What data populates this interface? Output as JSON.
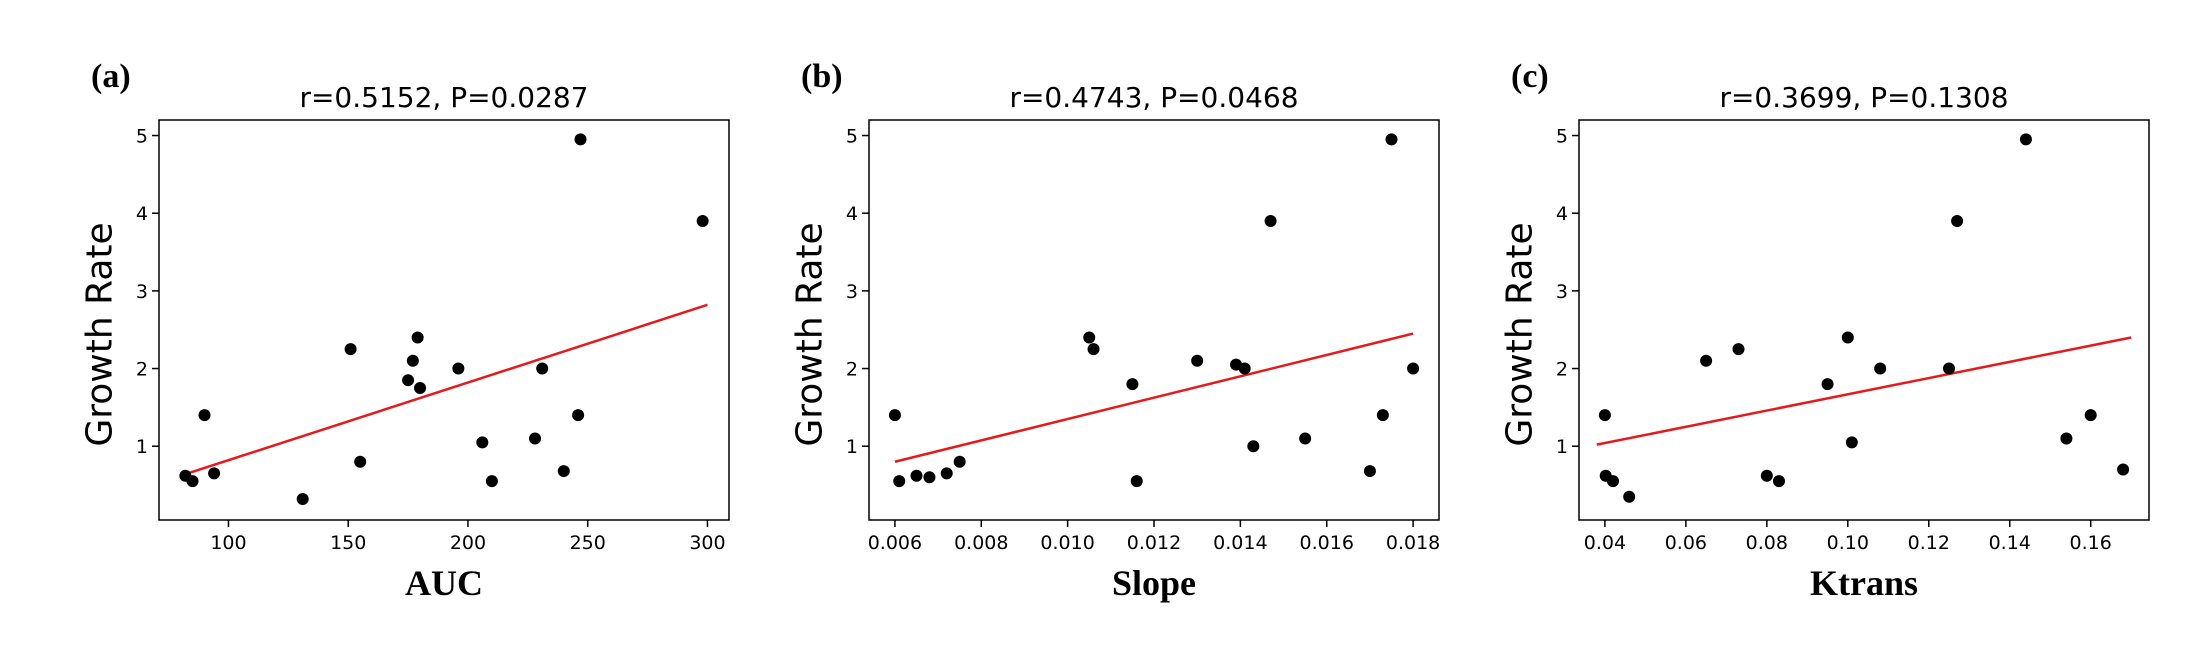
{
  "figure": {
    "background": "#ffffff",
    "point_color": "#000000",
    "line_color": "#e41a1c"
  },
  "chart_data": [
    {
      "type": "scatter",
      "panel_label": "(a)",
      "title": "r=0.5152, P=0.0287",
      "xlabel": "AUC",
      "ylabel": "Growth Rate",
      "xlim": [
        71,
        309
      ],
      "ylim": [
        0.05,
        5.2
      ],
      "xticks": [
        100,
        150,
        200,
        250,
        300
      ],
      "xtick_labels": [
        "100",
        "150",
        "200",
        "250",
        "300"
      ],
      "yticks": [
        1,
        2,
        3,
        4,
        5
      ],
      "ytick_labels": [
        "1",
        "2",
        "3",
        "4",
        "5"
      ],
      "grid": false,
      "legend": "none",
      "points": [
        [
          82,
          0.62
        ],
        [
          85,
          0.55
        ],
        [
          90,
          1.4
        ],
        [
          94,
          0.65
        ],
        [
          131,
          0.32
        ],
        [
          151,
          2.25
        ],
        [
          155,
          0.8
        ],
        [
          175,
          1.85
        ],
        [
          177,
          2.1
        ],
        [
          179,
          2.4
        ],
        [
          180,
          1.75
        ],
        [
          196,
          2.0
        ],
        [
          206,
          1.05
        ],
        [
          210,
          0.55
        ],
        [
          228,
          1.1
        ],
        [
          231,
          2.0
        ],
        [
          240,
          0.68
        ],
        [
          246,
          1.4
        ],
        [
          247,
          4.95
        ],
        [
          298,
          3.9
        ]
      ],
      "trend_line": {
        "x": [
          80,
          300
        ],
        "y": [
          0.62,
          2.82
        ],
        "color": "#e41a1c"
      },
      "point_color": "#000000"
    },
    {
      "type": "scatter",
      "panel_label": "(b)",
      "title": "r=0.4743, P=0.0468",
      "xlabel": "Slope",
      "ylabel": "Growth Rate",
      "xlim": [
        0.0054,
        0.0186
      ],
      "ylim": [
        0.05,
        5.2
      ],
      "xticks": [
        0.006,
        0.008,
        0.01,
        0.012,
        0.014,
        0.016,
        0.018
      ],
      "xtick_labels": [
        "0.006",
        "0.008",
        "0.010",
        "0.012",
        "0.014",
        "0.016",
        "0.018"
      ],
      "yticks": [
        1,
        2,
        3,
        4,
        5
      ],
      "ytick_labels": [
        "1",
        "2",
        "3",
        "4",
        "5"
      ],
      "grid": false,
      "legend": "none",
      "points": [
        [
          0.006,
          1.4
        ],
        [
          0.0061,
          0.55
        ],
        [
          0.0065,
          0.62
        ],
        [
          0.0068,
          0.6
        ],
        [
          0.0072,
          0.65
        ],
        [
          0.0075,
          0.8
        ],
        [
          0.0105,
          2.4
        ],
        [
          0.0106,
          2.25
        ],
        [
          0.0115,
          1.8
        ],
        [
          0.0116,
          0.55
        ],
        [
          0.013,
          2.1
        ],
        [
          0.0139,
          2.05
        ],
        [
          0.0141,
          2.0
        ],
        [
          0.0143,
          1.0
        ],
        [
          0.0147,
          3.9
        ],
        [
          0.0155,
          1.1
        ],
        [
          0.017,
          0.68
        ],
        [
          0.0173,
          1.4
        ],
        [
          0.0175,
          4.95
        ],
        [
          0.018,
          2.0
        ]
      ],
      "trend_line": {
        "x": [
          0.006,
          0.018
        ],
        "y": [
          0.8,
          2.45
        ],
        "color": "#e41a1c"
      },
      "point_color": "#000000"
    },
    {
      "type": "scatter",
      "panel_label": "(c)",
      "title": "r=0.3699, P=0.1308",
      "xlabel": "Ktrans",
      "ylabel": "Growth Rate",
      "xlim": [
        0.0336,
        0.1744
      ],
      "ylim": [
        0.05,
        5.2
      ],
      "xticks": [
        0.04,
        0.06,
        0.08,
        0.1,
        0.12,
        0.14,
        0.16
      ],
      "xtick_labels": [
        "0.04",
        "0.06",
        "0.08",
        "0.10",
        "0.12",
        "0.14",
        "0.16"
      ],
      "yticks": [
        1,
        2,
        3,
        4,
        5
      ],
      "ytick_labels": [
        "1",
        "2",
        "3",
        "4",
        "5"
      ],
      "grid": false,
      "legend": "none",
      "points": [
        [
          0.04,
          1.4
        ],
        [
          0.0402,
          0.62
        ],
        [
          0.042,
          0.55
        ],
        [
          0.046,
          0.35
        ],
        [
          0.065,
          2.1
        ],
        [
          0.073,
          2.25
        ],
        [
          0.08,
          0.62
        ],
        [
          0.083,
          0.55
        ],
        [
          0.095,
          1.8
        ],
        [
          0.1,
          2.4
        ],
        [
          0.101,
          1.05
        ],
        [
          0.108,
          2.0
        ],
        [
          0.125,
          2.0
        ],
        [
          0.127,
          3.9
        ],
        [
          0.144,
          4.95
        ],
        [
          0.154,
          1.1
        ],
        [
          0.16,
          1.4
        ],
        [
          0.168,
          0.7
        ]
      ],
      "trend_line": {
        "x": [
          0.038,
          0.17
        ],
        "y": [
          1.02,
          2.4
        ],
        "color": "#e41a1c"
      },
      "point_color": "#000000"
    }
  ]
}
